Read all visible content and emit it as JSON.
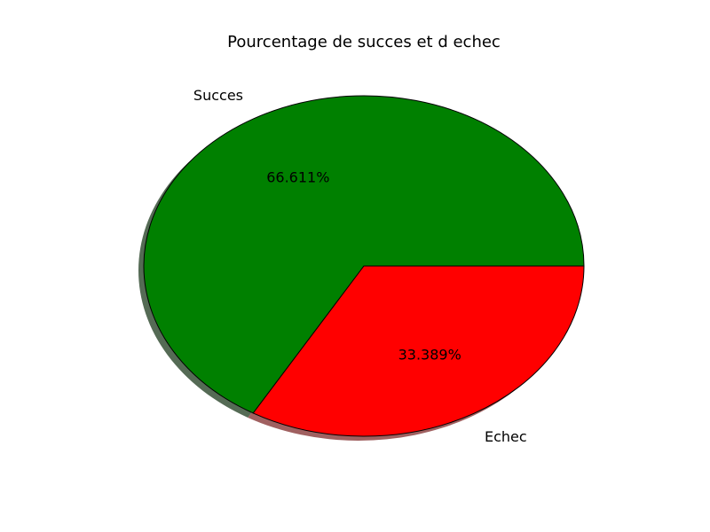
{
  "chart_data": {
    "type": "pie",
    "title": "Pourcentage de succes et d echec",
    "shadow": true,
    "start_angle_deg": 0,
    "direction": "counterclockwise",
    "slices": [
      {
        "label": "Succes",
        "value": 66.611,
        "pct_label": "66.611%",
        "color": "#008000",
        "shadow_color": "#556b55"
      },
      {
        "label": "Echec",
        "value": 33.389,
        "pct_label": "33.389%",
        "color": "#ff0000",
        "shadow_color": "#a06060"
      }
    ]
  }
}
